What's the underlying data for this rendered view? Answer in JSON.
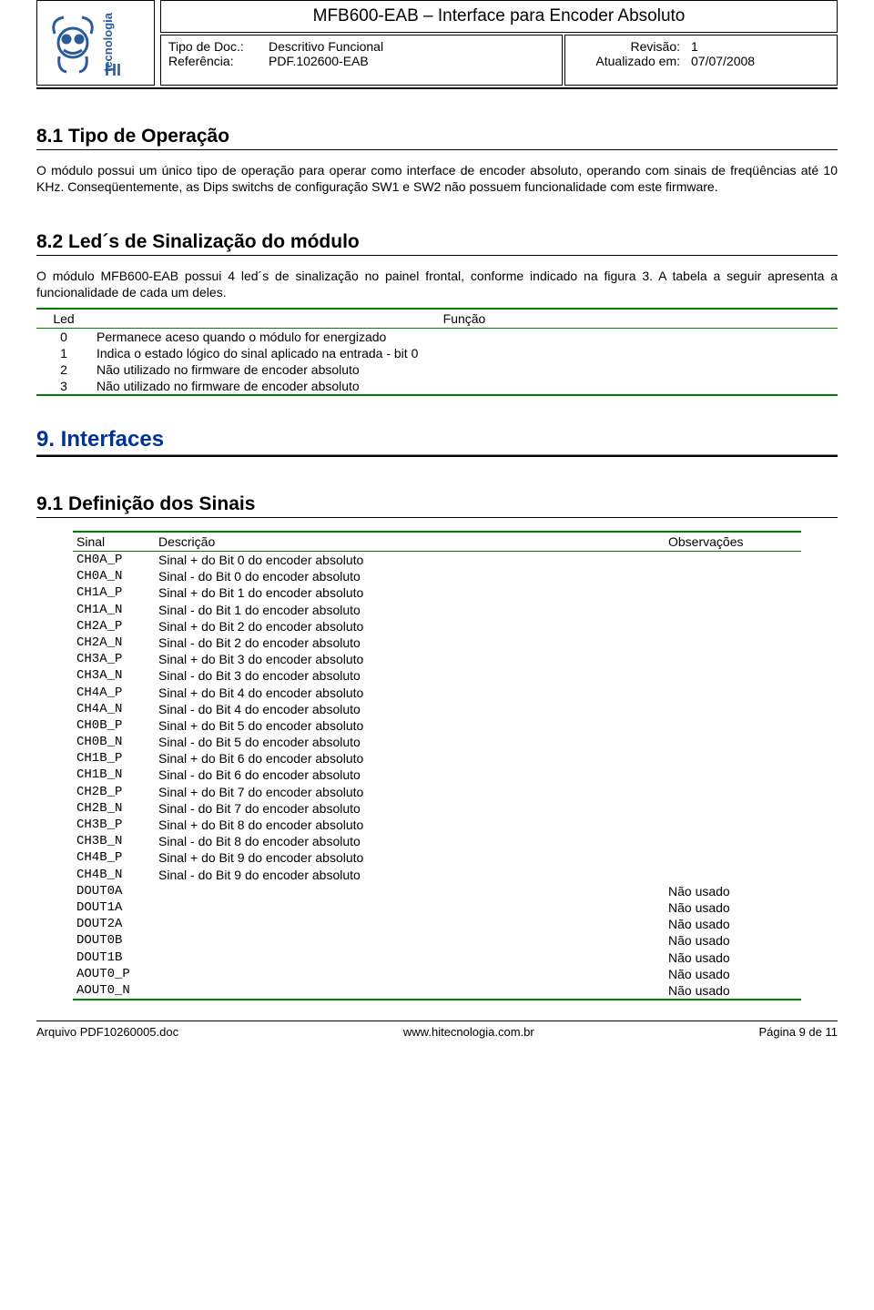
{
  "header": {
    "title": "MFB600-EAB – Interface para Encoder Absoluto",
    "doc_type_label": "Tipo de Doc.:",
    "doc_type_value": "Descritivo Funcional",
    "ref_label": "Referência:",
    "ref_value": "PDF.102600-EAB",
    "rev_label": "Revisão:",
    "rev_value": "1",
    "updated_label": "Atualizado em:",
    "updated_value": "07/07/2008"
  },
  "s81": {
    "heading": "8.1    Tipo de Operação",
    "para": "O módulo possui um único tipo de operação para operar como interface de encoder absoluto, operando com sinais de freqüências até  10 KHz. Conseqüentemente, as Dips switchs de configuração SW1 e SW2 não possuem funcionalidade com este firmware."
  },
  "s82": {
    "heading": "8.2    Led´s de Sinalização do módulo",
    "para": "O módulo MFB600-EAB possui 4 led´s de sinalização no painel frontal, conforme indicado na figura 3. A tabela a seguir apresenta a funcionalidade de cada um deles.",
    "columns": [
      "Led",
      "Função"
    ],
    "rows": [
      [
        "0",
        "Permanece aceso quando o módulo for energizado"
      ],
      [
        "1",
        "Indica o estado lógico do sinal aplicado na entrada - bit 0"
      ],
      [
        "2",
        "Não utilizado no firmware de encoder absoluto"
      ],
      [
        "3",
        "Não utilizado no firmware de encoder absoluto"
      ]
    ]
  },
  "s9": {
    "heading": "9. Interfaces"
  },
  "s91": {
    "heading": "9.1    Definição dos Sinais",
    "columns": [
      "Sinal",
      "Descrição",
      "Observações"
    ],
    "rows": [
      {
        "sinal": "CH0A_P",
        "desc": "Sinal + do Bit 0 do encoder absoluto",
        "obs": ""
      },
      {
        "sinal": "CH0A_N",
        "desc": "Sinal - do Bit 0 do encoder absoluto",
        "obs": ""
      },
      {
        "sinal": "CH1A_P",
        "desc": "Sinal + do Bit 1 do encoder absoluto",
        "obs": ""
      },
      {
        "sinal": "CH1A_N",
        "desc": "Sinal - do Bit 1 do encoder absoluto",
        "obs": ""
      },
      {
        "sinal": "CH2A_P",
        "desc": "Sinal + do Bit 2 do encoder absoluto",
        "obs": ""
      },
      {
        "sinal": "CH2A_N",
        "desc": "Sinal - do Bit 2 do encoder absoluto",
        "obs": ""
      },
      {
        "sinal": "CH3A_P",
        "desc": "Sinal + do Bit 3 do encoder absoluto",
        "obs": ""
      },
      {
        "sinal": "CH3A_N",
        "desc": "Sinal - do Bit 3 do encoder absoluto",
        "obs": ""
      },
      {
        "sinal": "CH4A_P",
        "desc": "Sinal + do Bit 4 do encoder absoluto",
        "obs": ""
      },
      {
        "sinal": "CH4A_N",
        "desc": "Sinal - do Bit 4 do encoder absoluto",
        "obs": ""
      },
      {
        "sinal": "CH0B_P",
        "desc": "Sinal + do Bit 5 do encoder absoluto",
        "obs": ""
      },
      {
        "sinal": "CH0B_N",
        "desc": "Sinal - do Bit 5 do encoder absoluto",
        "obs": ""
      },
      {
        "sinal": "CH1B_P",
        "desc": "Sinal + do Bit 6 do encoder absoluto",
        "obs": ""
      },
      {
        "sinal": "CH1B_N",
        "desc": "Sinal - do Bit 6 do encoder absoluto",
        "obs": ""
      },
      {
        "sinal": "CH2B_P",
        "desc": "Sinal + do Bit 7 do encoder absoluto",
        "obs": ""
      },
      {
        "sinal": "CH2B_N",
        "desc": "Sinal - do Bit 7 do encoder absoluto",
        "obs": ""
      },
      {
        "sinal": "CH3B_P",
        "desc": "Sinal + do Bit 8 do encoder absoluto",
        "obs": ""
      },
      {
        "sinal": "CH3B_N",
        "desc": "Sinal - do Bit 8 do encoder absoluto",
        "obs": ""
      },
      {
        "sinal": "CH4B_P",
        "desc": "Sinal + do Bit 9 do encoder absoluto",
        "obs": ""
      },
      {
        "sinal": "CH4B_N",
        "desc": "Sinal - do Bit 9 do encoder absoluto",
        "obs": ""
      },
      {
        "sinal": "DOUT0A",
        "desc": "",
        "obs": "Não usado"
      },
      {
        "sinal": "DOUT1A",
        "desc": "",
        "obs": "Não usado"
      },
      {
        "sinal": "DOUT2A",
        "desc": "",
        "obs": "Não usado"
      },
      {
        "sinal": "DOUT0B",
        "desc": "",
        "obs": "Não usado"
      },
      {
        "sinal": "DOUT1B",
        "desc": "",
        "obs": "Não usado"
      },
      {
        "sinal": "AOUT0_P",
        "desc": "",
        "obs": "Não usado"
      },
      {
        "sinal": "AOUT0_N",
        "desc": "",
        "obs": "Não usado"
      }
    ]
  },
  "footer": {
    "left": "Arquivo PDF10260005.doc",
    "center": "www.hitecnologia.com.br",
    "right": "Página 9 de 11"
  },
  "colors": {
    "table_border": "#008000",
    "h1_color": "#003399",
    "logo_blue": "#2b5b9b"
  }
}
